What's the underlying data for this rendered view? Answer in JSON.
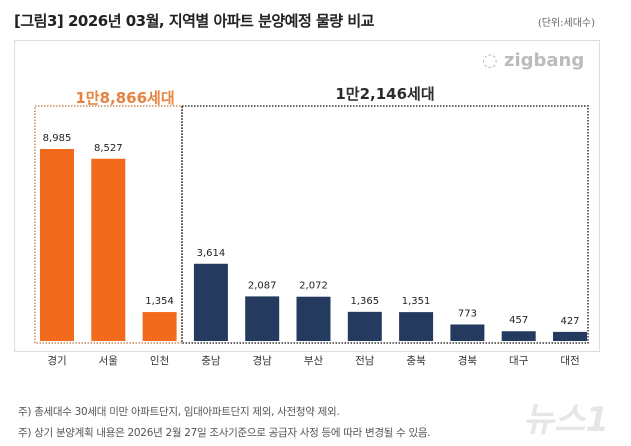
{
  "title": "[그림3] 2026년 03월, 지역별 아파트 분양예정 물량 비교",
  "unit": "(단위:세대수)",
  "logo": "zigbang",
  "watermark": "뉴스1",
  "notes": [
    "주) 총세대수 30세대 미만 아파트단지, 임대아파트단지 제외, 사전청약 제외.",
    "주) 상기 분양계획 내용은 2026년 2월 27일 조사기준으로 공급자 사정 등에 따라 변경될 수 있음."
  ],
  "colors": {
    "capital": "#f26a1b",
    "other": "#243a5e"
  },
  "chart_data": {
    "type": "bar",
    "categories": [
      "경기",
      "서울",
      "인천",
      "충남",
      "경남",
      "부산",
      "전남",
      "충북",
      "경북",
      "대구",
      "대전"
    ],
    "values": [
      8985,
      8527,
      1354,
      3614,
      2087,
      2072,
      1365,
      1351,
      773,
      457,
      427
    ],
    "data_labels": [
      "8,985",
      "8,527",
      "1,354",
      "3,614",
      "2,087",
      "2,072",
      "1,365",
      "1,351",
      "773",
      "457",
      "427"
    ],
    "groups": [
      {
        "label": "1만8,866세대",
        "range": [
          0,
          2
        ],
        "color": "#f26a1b"
      },
      {
        "label": "1만2,146세대",
        "range": [
          3,
          10
        ],
        "color": "#243a5e"
      }
    ],
    "ylim": [
      0,
      10000
    ],
    "grid": false
  }
}
